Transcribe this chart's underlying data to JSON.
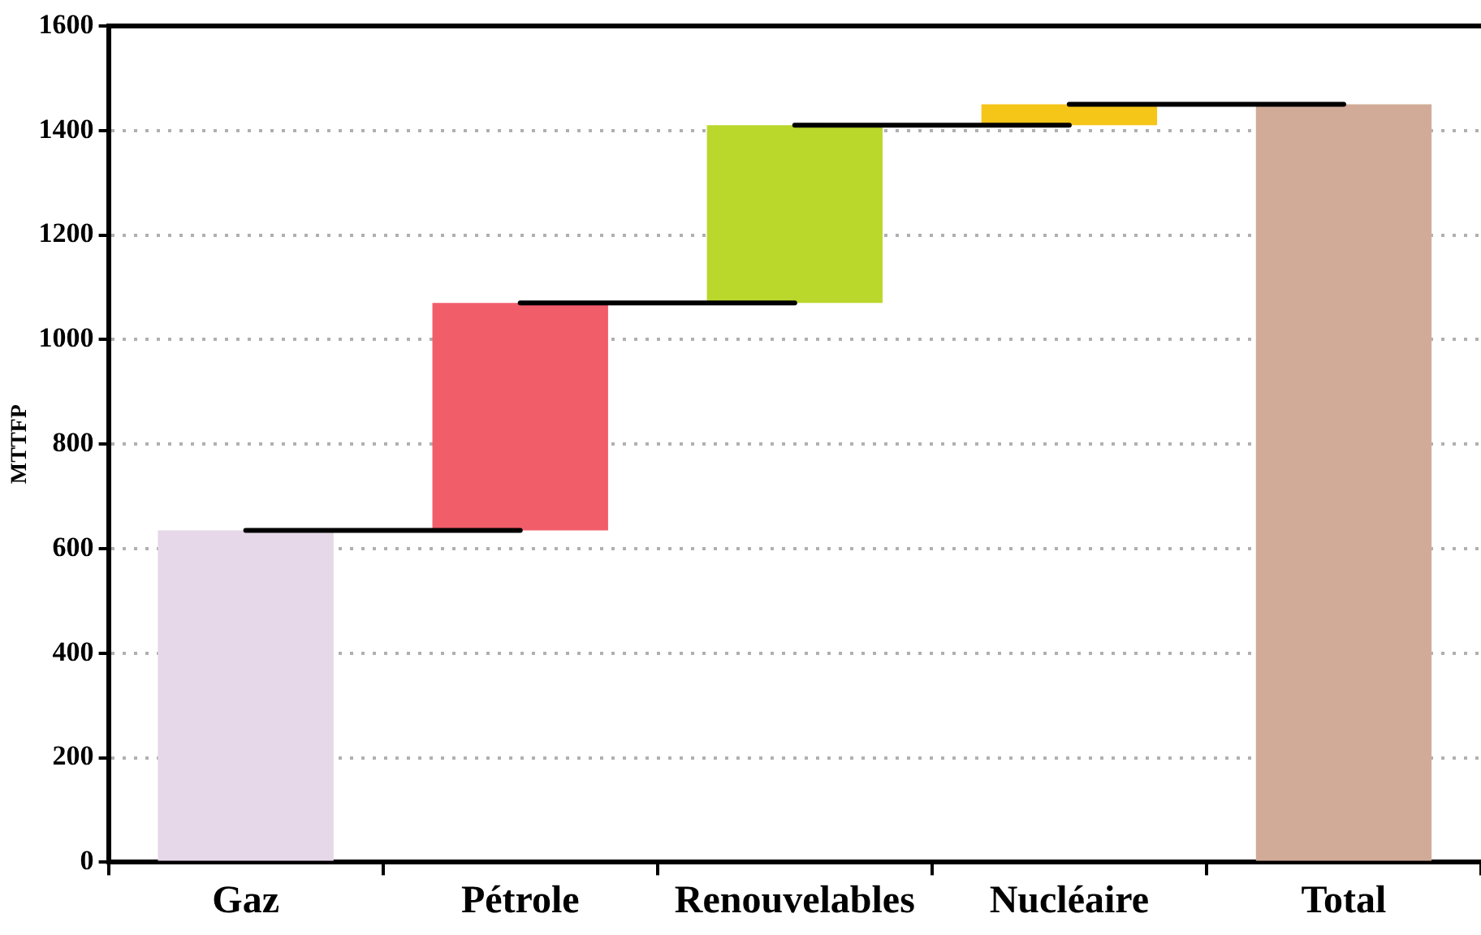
{
  "chart_data": {
    "type": "bar",
    "ylabel": "MTTFP",
    "categories": [
      "Gaz",
      "Pétrole",
      "Renouvelables",
      "Nucléaire",
      "Total"
    ],
    "series": [
      {
        "values": [
          635,
          435,
          340,
          40,
          1450
        ],
        "base": [
          0,
          635,
          1070,
          1410,
          0
        ],
        "colors": [
          "#e6d8e8",
          "#f25d6a",
          "#bad72c",
          "#f5c518",
          "#d1ab98"
        ]
      },
      {
        "type": "line",
        "x": [
          "Gaz",
          "Pétrole"
        ],
        "values": [
          635,
          635
        ],
        "color": "#000000"
      },
      {
        "type": "line",
        "x": [
          "Pétrole",
          "Renouvelables"
        ],
        "values": [
          1070,
          1070
        ],
        "color": "#000000"
      },
      {
        "type": "line",
        "x": [
          "Renouvelables",
          "Nucléaire"
        ],
        "values": [
          1410,
          1410
        ],
        "color": "#000000"
      },
      {
        "type": "line",
        "x": [
          "Nucléaire",
          "Total"
        ],
        "values": [
          1450,
          1450
        ],
        "color": "#000000"
      }
    ],
    "ylim": [
      0,
      1600
    ],
    "yticks": [
      0,
      200,
      400,
      600,
      800,
      1000,
      1200,
      1400,
      1600
    ],
    "grid": "y",
    "legend": false
  }
}
